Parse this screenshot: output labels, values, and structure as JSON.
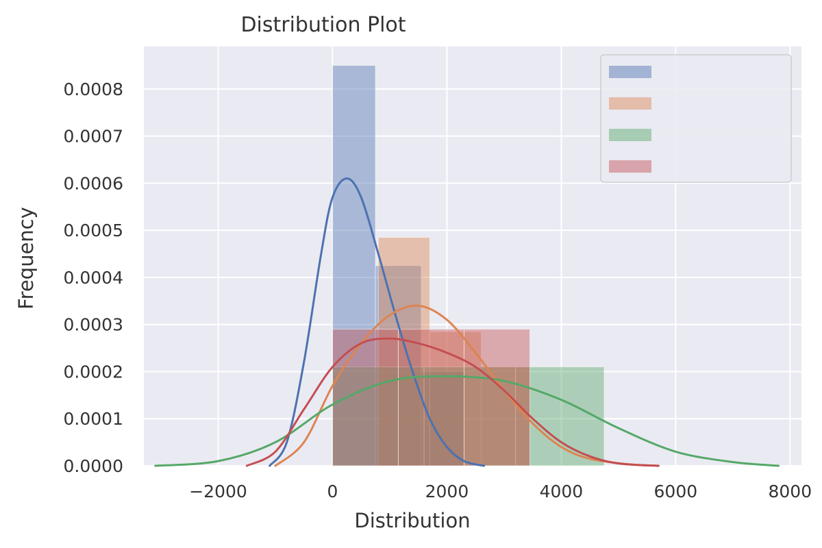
{
  "chart_data": {
    "type": "histogram+kde",
    "title": "Distribution Plot",
    "xlabel": "Distribution",
    "ylabel": "Frequency",
    "xlim": [
      -3300,
      8200
    ],
    "ylim": [
      0,
      0.00089
    ],
    "x_ticks": [
      -2000,
      0,
      2000,
      4000,
      6000,
      8000
    ],
    "x_tick_labels": [
      "−2000",
      "0",
      "2000",
      "4000",
      "6000",
      "8000"
    ],
    "y_ticks": [
      0,
      0.0001,
      0.0002,
      0.0003,
      0.0004,
      0.0005,
      0.0006,
      0.0007,
      0.0008
    ],
    "y_tick_labels": [
      "0.0000",
      "0.0001",
      "0.0002",
      "0.0003",
      "0.0004",
      "0.0005",
      "0.0006",
      "0.0007",
      "0.0008"
    ],
    "grid": true,
    "background": "#eaeaf2",
    "legend": {
      "position": "top-right",
      "labels_visible": false
    },
    "series": [
      {
        "color": "#4c72b0",
        "bins": [
          {
            "x0": 0,
            "x1": 750,
            "density": 0.00085
          },
          {
            "x0": 750,
            "x1": 1550,
            "density": 0.000425
          },
          {
            "x0": 1550,
            "x1": 2300,
            "density": 0.0002
          }
        ],
        "kde": [
          [
            -1100,
            0
          ],
          [
            -800,
            5e-05
          ],
          [
            -500,
            0.00022
          ],
          [
            -200,
            0.00045
          ],
          [
            0,
            0.00057
          ],
          [
            250,
            0.00061
          ],
          [
            500,
            0.00057
          ],
          [
            800,
            0.00045
          ],
          [
            1100,
            0.00032
          ],
          [
            1400,
            0.0002
          ],
          [
            1700,
            0.0001
          ],
          [
            2000,
            4e-05
          ],
          [
            2300,
            1e-05
          ],
          [
            2650,
            0
          ]
        ]
      },
      {
        "color": "#dd8452",
        "bins": [
          {
            "x0": 800,
            "x1": 1700,
            "density": 0.000485
          },
          {
            "x0": 1700,
            "x1": 2600,
            "density": 0.000285
          },
          {
            "x0": 2600,
            "x1": 3450,
            "density": 0.00021
          }
        ],
        "kde": [
          [
            -1000,
            0
          ],
          [
            -500,
            5e-05
          ],
          [
            0,
            0.00017
          ],
          [
            500,
            0.00026
          ],
          [
            1000,
            0.00032
          ],
          [
            1500,
            0.00034
          ],
          [
            2000,
            0.00031
          ],
          [
            2500,
            0.00024
          ],
          [
            3000,
            0.00016
          ],
          [
            3500,
            9e-05
          ],
          [
            4000,
            4e-05
          ],
          [
            4500,
            1.5e-05
          ],
          [
            5200,
            3e-06
          ],
          [
            5700,
            0
          ]
        ]
      },
      {
        "color": "#55a868",
        "bins": [
          {
            "x0": 0,
            "x1": 1600,
            "density": 0.00021
          },
          {
            "x0": 1600,
            "x1": 3200,
            "density": 0.00021
          },
          {
            "x0": 3200,
            "x1": 4750,
            "density": 0.00021
          }
        ],
        "kde": [
          [
            -3100,
            0
          ],
          [
            -2000,
            1e-05
          ],
          [
            -1000,
            5e-05
          ],
          [
            0,
            0.00013
          ],
          [
            1000,
            0.00018
          ],
          [
            2000,
            0.00019
          ],
          [
            3000,
            0.00018
          ],
          [
            4000,
            0.00014
          ],
          [
            5000,
            8e-05
          ],
          [
            6000,
            3e-05
          ],
          [
            7000,
            8e-06
          ],
          [
            7800,
            0
          ]
        ]
      },
      {
        "color": "#c44e52",
        "bins": [
          {
            "x0": 0,
            "x1": 1150,
            "density": 0.00029
          },
          {
            "x0": 1150,
            "x1": 2300,
            "density": 0.00029
          },
          {
            "x0": 2300,
            "x1": 3450,
            "density": 0.00029
          }
        ],
        "kde": [
          [
            -1500,
            0
          ],
          [
            -1000,
            3e-05
          ],
          [
            -500,
            0.00012
          ],
          [
            0,
            0.00021
          ],
          [
            500,
            0.00026
          ],
          [
            1000,
            0.00027
          ],
          [
            1500,
            0.00026
          ],
          [
            2000,
            0.00024
          ],
          [
            2500,
            0.00021
          ],
          [
            3000,
            0.00016
          ],
          [
            3500,
            0.0001
          ],
          [
            4000,
            5e-05
          ],
          [
            4500,
            2e-05
          ],
          [
            5000,
            5e-06
          ],
          [
            5700,
            0
          ]
        ]
      }
    ]
  }
}
